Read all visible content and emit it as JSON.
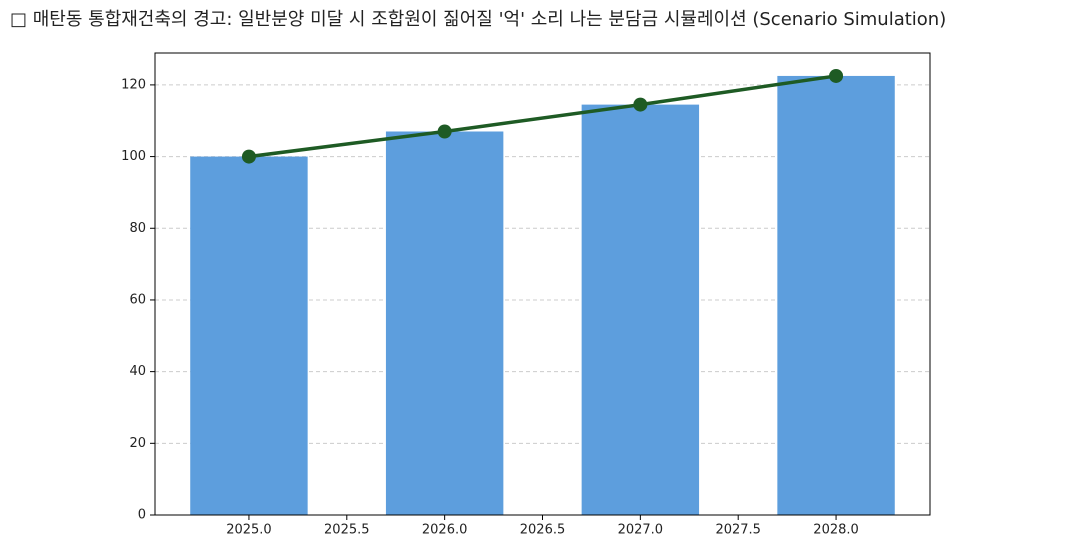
{
  "chart_data": {
    "type": "combo",
    "title": "□ 매탄동 통합재건축의 경고: 일반분양 미달 시 조합원이 짊어질 '억' 소리 나는 분담금 시뮬레이션 (Scenario Simulation)",
    "x": [
      2025,
      2026,
      2027,
      2028
    ],
    "series": [
      {
        "type": "bar",
        "color": "#5d9edd",
        "values": [
          100,
          107,
          114.5,
          122.5
        ]
      },
      {
        "type": "line",
        "color": "#1e5b24",
        "values": [
          100,
          107,
          114.5,
          122.5
        ]
      }
    ],
    "xlim": [
      2024.52,
      2028.48
    ],
    "xticks": [
      {
        "value": 2025,
        "label": "2025.0"
      },
      {
        "value": 2025.5,
        "label": "2025.5"
      },
      {
        "value": 2026,
        "label": "2026.0"
      },
      {
        "value": 2026.5,
        "label": "2026.5"
      },
      {
        "value": 2027,
        "label": "2027.0"
      },
      {
        "value": 2027.5,
        "label": "2027.5"
      },
      {
        "value": 2028,
        "label": "2028.0"
      }
    ],
    "ylim": [
      0,
      128.9
    ],
    "yticks": [
      0,
      20,
      40,
      60,
      80,
      100,
      120
    ],
    "grid": true
  }
}
